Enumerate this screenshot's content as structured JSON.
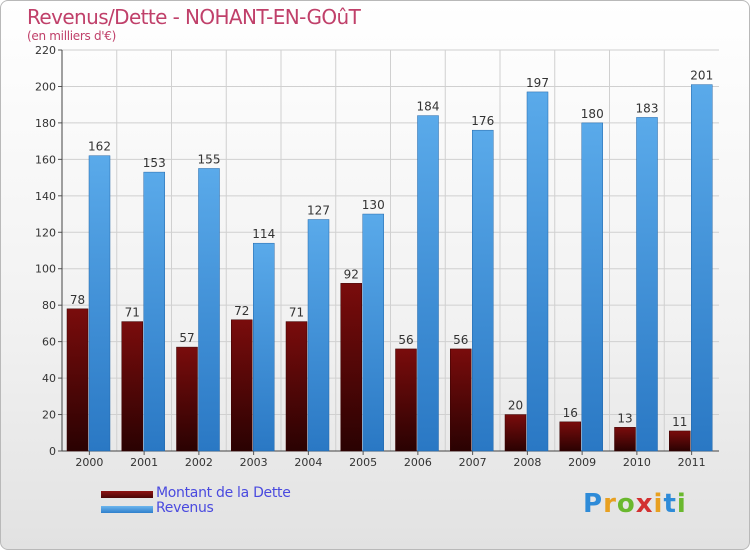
{
  "chart_data": {
    "type": "bar",
    "title": "Revenus/Dette - NOHANT-EN-GOûT",
    "subtitle": "(en milliers d'€)",
    "categories": [
      "2000",
      "2001",
      "2002",
      "2003",
      "2004",
      "2005",
      "2006",
      "2007",
      "2008",
      "2009",
      "2010",
      "2011"
    ],
    "series": [
      {
        "name": "Montant de la Dette",
        "color": "#6b0a0a",
        "values": [
          78,
          71,
          57,
          72,
          71,
          92,
          56,
          56,
          20,
          16,
          13,
          11
        ]
      },
      {
        "name": "Revenus",
        "color": "#3b8fd8",
        "values": [
          162,
          153,
          155,
          114,
          127,
          130,
          184,
          176,
          197,
          180,
          183,
          201
        ]
      }
    ],
    "ylim": [
      0,
      220
    ],
    "yticks": [
      0,
      20,
      40,
      60,
      80,
      100,
      120,
      140,
      160,
      180,
      200,
      220
    ],
    "grid": true,
    "legend_position": "bottom-left",
    "data_labels": true
  },
  "logo": {
    "letters": [
      "P",
      "r",
      "o",
      "x",
      "i",
      "t",
      "i"
    ],
    "colors": [
      "#2e8bd8",
      "#e8a020",
      "#6ab82e",
      "#d33030",
      "#e8a020",
      "#2e8bd8",
      "#6ab82e"
    ]
  }
}
